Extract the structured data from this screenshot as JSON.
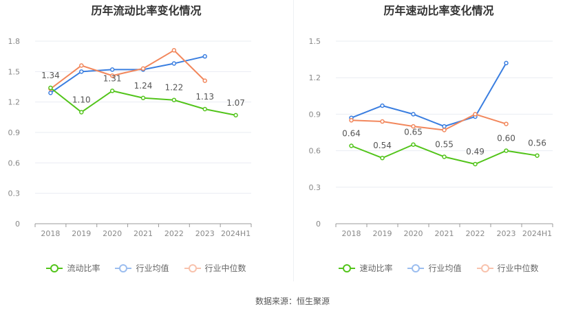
{
  "colors": {
    "primary": "#52c41a",
    "avg": "#3a7ee0",
    "median": "#f2875c",
    "grid": "#e9ecf2",
    "axis": "#888888",
    "label": "#555555"
  },
  "footer": "数据来源：恒生聚源",
  "chart_data": [
    {
      "type": "line",
      "title": "历年流动比率变化情况",
      "categories": [
        "2018",
        "2019",
        "2020",
        "2021",
        "2022",
        "2023",
        "2024H1"
      ],
      "ylim": [
        0,
        1.8
      ],
      "yticks": [
        "0",
        "0.3",
        "0.6",
        "0.9",
        "1.2",
        "1.5",
        "1.8"
      ],
      "grid": true,
      "legend_position": "bottom",
      "series": [
        {
          "name": "流动比率",
          "values": [
            1.34,
            1.1,
            1.31,
            1.24,
            1.22,
            1.13,
            1.07
          ],
          "labels": [
            "1.34",
            "1.10",
            "1.31",
            "1.24",
            "1.22",
            "1.13",
            "1.07"
          ]
        },
        {
          "name": "行业均值",
          "values": [
            1.29,
            1.5,
            1.52,
            1.52,
            1.58,
            1.65,
            null
          ]
        },
        {
          "name": "行业中位数",
          "values": [
            1.33,
            1.56,
            1.46,
            1.53,
            1.71,
            1.41,
            null
          ]
        }
      ]
    },
    {
      "type": "line",
      "title": "历年速动比率变化情况",
      "categories": [
        "2018",
        "2019",
        "2020",
        "2021",
        "2022",
        "2023",
        "2024H1"
      ],
      "ylim": [
        0,
        1.5
      ],
      "yticks": [
        "0",
        "0.3",
        "0.6",
        "0.9",
        "1.2",
        "1.5"
      ],
      "grid": true,
      "legend_position": "bottom",
      "series": [
        {
          "name": "速动比率",
          "values": [
            0.64,
            0.54,
            0.65,
            0.55,
            0.49,
            0.6,
            0.56
          ],
          "labels": [
            "0.64",
            "0.54",
            "0.65",
            "0.55",
            "0.49",
            "0.60",
            "0.56"
          ]
        },
        {
          "name": "行业均值",
          "values": [
            0.87,
            0.97,
            0.9,
            0.8,
            0.88,
            1.32,
            null
          ]
        },
        {
          "name": "行业中位数",
          "values": [
            0.85,
            0.84,
            0.8,
            0.77,
            0.9,
            0.82,
            null
          ]
        }
      ]
    }
  ]
}
